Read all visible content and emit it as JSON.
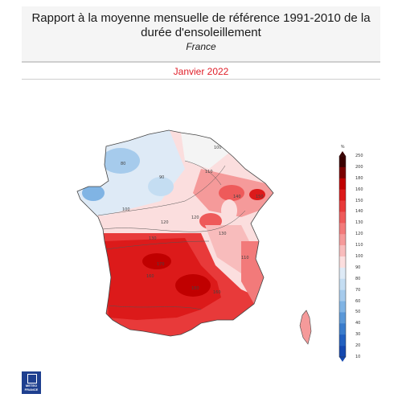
{
  "header": {
    "title": "Rapport à la moyenne mensuelle de référence 1991-2010 de la durée d'ensoleillement",
    "subtitle": "France",
    "date": "Janvier 2022"
  },
  "legend": {
    "unit": "%",
    "ticks": [
      "250",
      "200",
      "180",
      "160",
      "150",
      "140",
      "130",
      "120",
      "110",
      "100",
      "90",
      "80",
      "70",
      "60",
      "50",
      "40",
      "30",
      "20",
      "10"
    ],
    "colors": [
      "#3a0000",
      "#7a0000",
      "#c00000",
      "#dc1a1a",
      "#e83a3a",
      "#ee5a5a",
      "#f27a7a",
      "#f59a9a",
      "#f8bcbc",
      "#fbdede",
      "#deeaf6",
      "#c4ddf2",
      "#a6cbec",
      "#80b4e4",
      "#5a98d8",
      "#3a7ccc",
      "#2260c0",
      "#1448b0"
    ]
  },
  "map": {
    "contour_labels": [
      "100",
      "100",
      "110",
      "120",
      "120",
      "130",
      "130",
      "140",
      "150",
      "160",
      "160",
      "170",
      "180",
      "110",
      "90",
      "80"
    ]
  },
  "logo": {
    "name": "METEO FRANCE"
  }
}
